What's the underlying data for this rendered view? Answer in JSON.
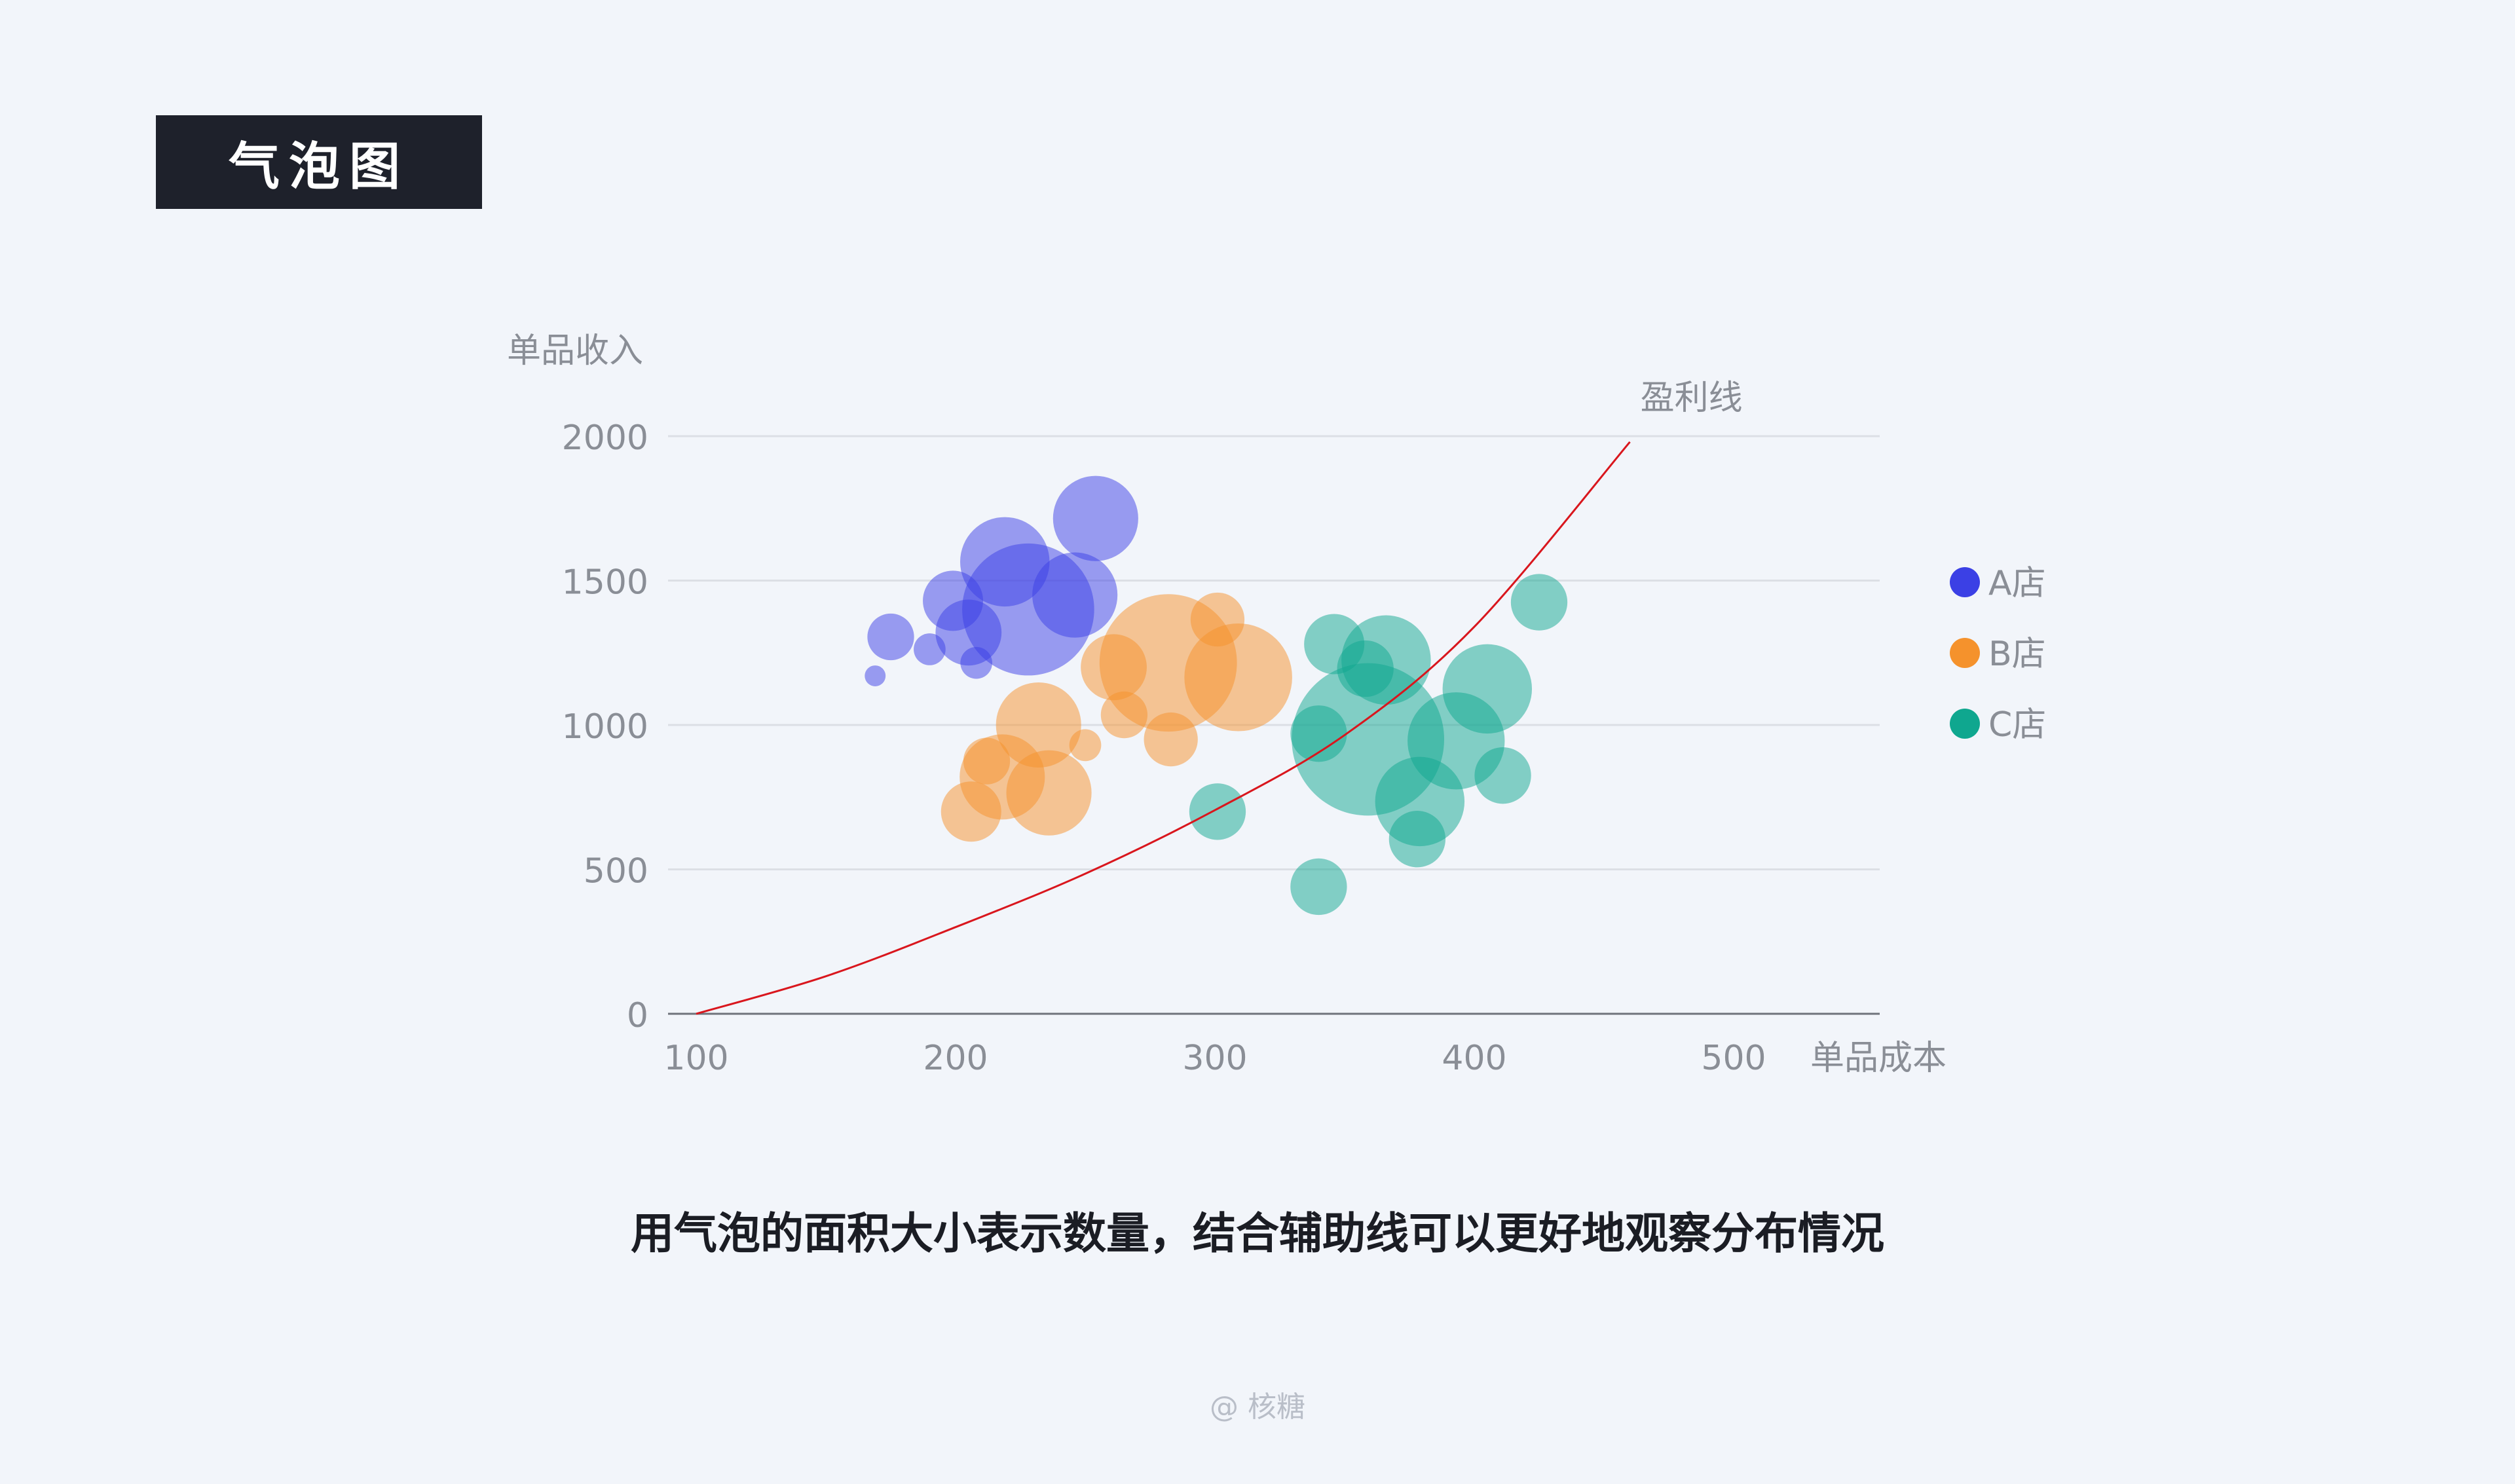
{
  "header": {
    "title": "气泡图"
  },
  "caption": "用气泡的面积大小表示数量，结合辅助线可以更好地观察分布情况",
  "credit": "@ 核糖",
  "chart_data": {
    "type": "scatter",
    "title": "",
    "xlabel": "单品成本",
    "ylabel": "单品收入",
    "xlim": [
      100,
      570
    ],
    "ylim": [
      0,
      2000
    ],
    "x_ticks": [
      "100",
      "200",
      "300",
      "400",
      "500"
    ],
    "x_tick_values": [
      100,
      200,
      300,
      400,
      500
    ],
    "y_ticks": [
      "0",
      "500",
      "1000",
      "1500",
      "2000"
    ],
    "y_tick_values": [
      0,
      500,
      1000,
      1500,
      2000
    ],
    "grid": true,
    "legend_position": "right",
    "reference_line": {
      "label": "盈利线",
      "color": "#d9161d",
      "x": [
        100,
        150,
        200,
        250,
        300,
        350,
        400,
        460
      ],
      "y": [
        0,
        130,
        300,
        485,
        705,
        965,
        1340,
        1980
      ]
    },
    "series": [
      {
        "name": "A店",
        "color": "#3b40e5",
        "points": [
          {
            "x": 169,
            "y": 1170,
            "size": 3
          },
          {
            "x": 175,
            "y": 1305,
            "size": 15
          },
          {
            "x": 190,
            "y": 1262,
            "size": 7
          },
          {
            "x": 199,
            "y": 1430,
            "size": 25
          },
          {
            "x": 205,
            "y": 1320,
            "size": 30
          },
          {
            "x": 208,
            "y": 1215,
            "size": 7
          },
          {
            "x": 219,
            "y": 1565,
            "size": 55
          },
          {
            "x": 228,
            "y": 1400,
            "size": 120
          },
          {
            "x": 246,
            "y": 1450,
            "size": 50
          },
          {
            "x": 254,
            "y": 1715,
            "size": 50
          }
        ]
      },
      {
        "name": "B店",
        "color": "#f5922c",
        "points": [
          {
            "x": 206,
            "y": 700,
            "size": 25
          },
          {
            "x": 212,
            "y": 875,
            "size": 15
          },
          {
            "x": 218,
            "y": 820,
            "size": 50
          },
          {
            "x": 232,
            "y": 1000,
            "size": 50
          },
          {
            "x": 236,
            "y": 765,
            "size": 50
          },
          {
            "x": 250,
            "y": 930,
            "size": 7
          },
          {
            "x": 261,
            "y": 1200,
            "size": 30
          },
          {
            "x": 265,
            "y": 1035,
            "size": 15
          },
          {
            "x": 282,
            "y": 1215,
            "size": 130
          },
          {
            "x": 283,
            "y": 950,
            "size": 20
          },
          {
            "x": 301,
            "y": 1365,
            "size": 20
          },
          {
            "x": 309,
            "y": 1165,
            "size": 80
          }
        ]
      },
      {
        "name": "C店",
        "color": "#0fa78f",
        "points": [
          {
            "x": 301,
            "y": 700,
            "size": 22
          },
          {
            "x": 340,
            "y": 440,
            "size": 22
          },
          {
            "x": 340,
            "y": 970,
            "size": 22
          },
          {
            "x": 346,
            "y": 1280,
            "size": 25
          },
          {
            "x": 358,
            "y": 1195,
            "size": 22
          },
          {
            "x": 359,
            "y": 950,
            "size": 160
          },
          {
            "x": 366,
            "y": 1225,
            "size": 55
          },
          {
            "x": 378,
            "y": 605,
            "size": 22
          },
          {
            "x": 379,
            "y": 735,
            "size": 55
          },
          {
            "x": 393,
            "y": 945,
            "size": 65
          },
          {
            "x": 405,
            "y": 1125,
            "size": 55
          },
          {
            "x": 411,
            "y": 825,
            "size": 22
          },
          {
            "x": 425,
            "y": 1425,
            "size": 22
          }
        ]
      }
    ]
  }
}
